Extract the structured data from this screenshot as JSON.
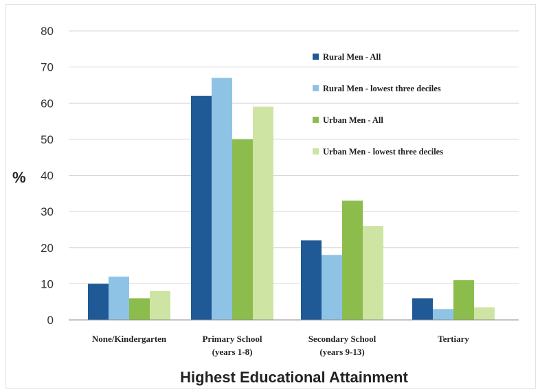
{
  "chart_data": {
    "type": "bar",
    "title": "",
    "xlabel": "Highest Educational Attainment",
    "ylabel": "%",
    "ylim": [
      0,
      80
    ],
    "yticks": [
      0,
      10,
      20,
      30,
      40,
      50,
      60,
      70,
      80
    ],
    "grid": true,
    "legend_position": "top-right",
    "categories": [
      [
        "None/Kindergarten"
      ],
      [
        "Primary School",
        "(years 1-8)"
      ],
      [
        "Secondary School",
        "(years 9-13)"
      ],
      [
        "Tertiary"
      ]
    ],
    "series": [
      {
        "name": "Rural Men - All",
        "color": "#1f5a96",
        "values": [
          10,
          62,
          22,
          6
        ]
      },
      {
        "name": "Rural Men - lowest three deciles",
        "color": "#8fc3e6",
        "values": [
          12,
          67,
          18,
          3
        ]
      },
      {
        "name": "Urban Men - All",
        "color": "#8cbd4c",
        "values": [
          6,
          50,
          33,
          11
        ]
      },
      {
        "name": "Urban Men - lowest three deciles",
        "color": "#cde4a3",
        "values": [
          8,
          59,
          26,
          3.5
        ]
      }
    ]
  }
}
